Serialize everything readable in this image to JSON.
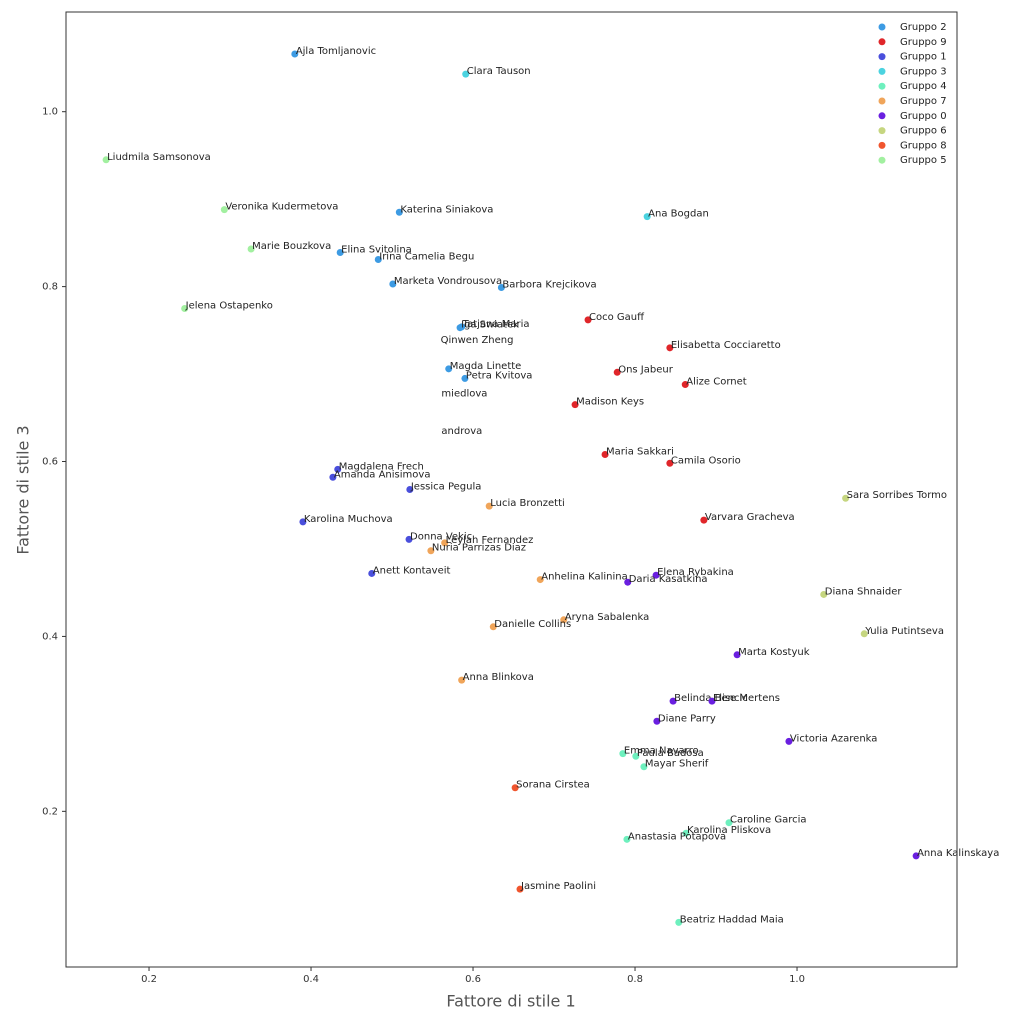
{
  "chart_data": {
    "type": "scatter",
    "xlabel": "Fattore di stile 1",
    "ylabel": "Fattore di stile 3",
    "xlim": [
      0.0975,
      1.1975
    ],
    "ylim": [
      0.022,
      1.114
    ],
    "xticks": [
      0.2,
      0.4,
      0.6,
      0.8,
      {
        "value": 1,
        "label": "1.0"
      }
    ],
    "yticks": [
      0.2,
      0.4,
      0.6,
      0.8,
      {
        "value": 1,
        "label": "1.0"
      }
    ],
    "legend": "upper right",
    "series": [
      {
        "name": "Gruppo 2",
        "color": "#3d9be3",
        "labels": [
          "Ajla Tomljanovic",
          "Katerina Siniakova",
          "Elina Svitolina",
          "Irina Camelia Begu",
          "Marketa Vondrousova",
          "Barbora Krejcikova",
          "Tatjana Maria",
          "Iga Swiatek",
          "Magda Linette",
          "Petra Kvitova"
        ],
        "x": [
          0.38,
          0.509,
          0.436,
          0.483,
          0.501,
          0.635,
          0.586,
          0.584,
          0.57,
          0.59
        ],
        "values": [
          1.066,
          0.885,
          0.839,
          0.831,
          0.803,
          0.799,
          0.754,
          0.753,
          0.706,
          0.695
        ]
      },
      {
        "name": "Gruppo 9",
        "color": "#e0262a",
        "labels": [
          "Coco Gauff",
          "Elisabetta Cocciaretto",
          "Ons Jabeur",
          "Alize Cornet",
          "Madison Keys",
          "Maria Sakkari",
          "Camila Osorio",
          "Varvara Gracheva"
        ],
        "x": [
          0.742,
          0.843,
          0.778,
          0.862,
          0.726,
          0.763,
          0.843,
          0.885
        ],
        "values": [
          0.762,
          0.73,
          0.702,
          0.688,
          0.665,
          0.608,
          0.598,
          0.533
        ]
      },
      {
        "name": "Gruppo 1",
        "color": "#4a4fdc",
        "labels": [
          "Magdalena Frech",
          "Amanda Anisimova",
          "Jessica Pegula",
          "Karolina Muchova",
          "Donna Vekic",
          "Anett Kontaveit"
        ],
        "x": [
          0.433,
          0.427,
          0.522,
          0.39,
          0.521,
          0.475
        ],
        "values": [
          0.591,
          0.582,
          0.568,
          0.531,
          0.511,
          0.472
        ]
      },
      {
        "name": "Gruppo 3",
        "color": "#4bd3e0",
        "labels": [
          "Clara Tauson",
          "Ana Bogdan"
        ],
        "x": [
          0.591,
          0.815
        ],
        "values": [
          1.043,
          0.88
        ]
      },
      {
        "name": "Gruppo 4",
        "color": "#6ef0be",
        "labels": [
          "Emma Navarro",
          "Paula Badosa",
          "Mayar Sherif",
          "Caroline Garcia",
          "Karolina Pliskova",
          "Anastasia Potapova",
          "Beatriz Haddad Maia"
        ],
        "x": [
          0.785,
          0.801,
          0.811,
          0.916,
          0.863,
          0.79,
          0.854
        ],
        "values": [
          0.266,
          0.263,
          0.251,
          0.187,
          0.175,
          0.168,
          0.073
        ]
      },
      {
        "name": "Gruppo 7",
        "color": "#f0a55a",
        "labels": [
          "Lucia Bronzetti",
          "Leylah Fernandez",
          "Nuria Parrizas Diaz",
          "Anhelina Kalinina",
          "Aryna Sabalenka",
          "Danielle Collins",
          "Anna Blinkova"
        ],
        "x": [
          0.62,
          0.565,
          0.548,
          0.683,
          0.712,
          0.625,
          0.586
        ],
        "values": [
          0.549,
          0.507,
          0.498,
          0.465,
          0.419,
          0.411,
          0.35
        ]
      },
      {
        "name": "Gruppo 0",
        "color": "#6a1fe0",
        "labels": [
          "Elena Rybakina",
          "Daria Kasatkina",
          "Marta Kostyuk",
          "Belinda Bencic",
          "Elise Mertens",
          "Diane Parry",
          "Victoria Azarenka",
          "Anna Kalinskaya"
        ],
        "x": [
          0.826,
          0.791,
          0.926,
          0.847,
          0.895,
          0.827,
          0.99,
          1.147
        ],
        "values": [
          0.47,
          0.462,
          0.379,
          0.326,
          0.326,
          0.303,
          0.28,
          0.149
        ]
      },
      {
        "name": "Gruppo 6",
        "color": "#c6d680",
        "labels": [
          "Sara Sorribes Tormo",
          "Diana Shnaider",
          "Yulia Putintseva"
        ],
        "x": [
          1.06,
          1.033,
          1.083
        ],
        "values": [
          0.558,
          0.448,
          0.403
        ]
      },
      {
        "name": "Gruppo 8",
        "color": "#f0552e",
        "labels": [
          "Sorana Cirstea",
          "Jasmine Paolini"
        ],
        "x": [
          0.652,
          0.658
        ],
        "values": [
          0.227,
          0.111
        ]
      },
      {
        "name": "Gruppo 5",
        "color": "#a2f0a0",
        "labels": [
          "Liudmila Samsonova",
          "Veronika Kudermetova",
          "Marie Bouzkova",
          "Jelena Ostapenko"
        ],
        "x": [
          0.147,
          0.293,
          0.326,
          0.244
        ],
        "values": [
          0.945,
          0.888,
          0.843,
          0.775
        ]
      }
    ],
    "annotations": [
      {
        "text": "Qinwen Zheng",
        "x": 0.56,
        "y": 0.739
      },
      {
        "text": "miedlova",
        "x": 0.561,
        "y": 0.678
      },
      {
        "text": "androva",
        "x": 0.561,
        "y": 0.635
      }
    ]
  }
}
